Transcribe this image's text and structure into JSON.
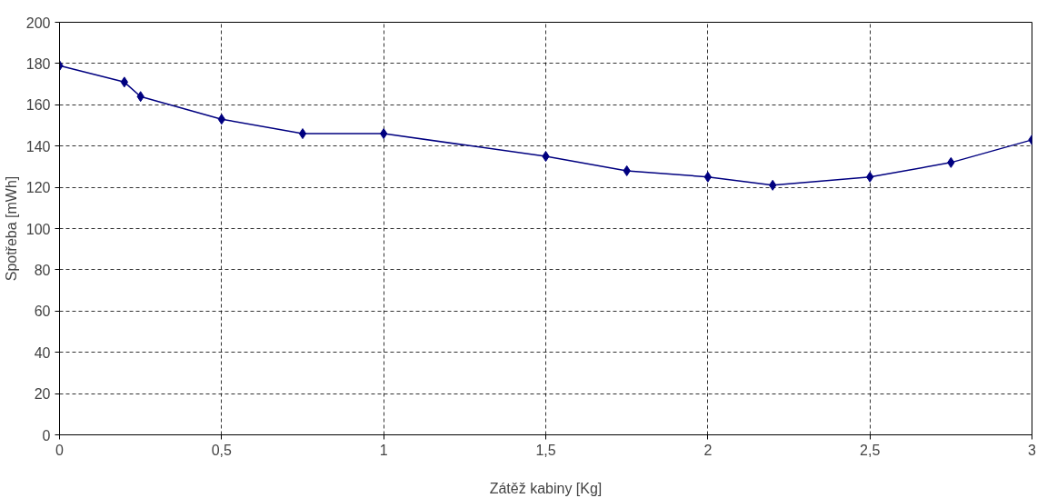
{
  "chart_data": {
    "type": "line",
    "xlabel": "Zátěž kabiny [Kg]",
    "ylabel": "Spotřeba [mWh]",
    "x": [
      0,
      0.2,
      0.25,
      0.5,
      0.75,
      1,
      1.5,
      1.75,
      2,
      2.2,
      2.5,
      2.75,
      3
    ],
    "series": [
      {
        "color": "#000080",
        "values": [
          179,
          171,
          164,
          153,
          146,
          146,
          135,
          128,
          125,
          121,
          125,
          132,
          143
        ]
      }
    ],
    "xlim": [
      0,
      3
    ],
    "ylim": [
      0,
      200
    ],
    "xticks": [
      0,
      {
        "value": 0.5,
        "label": "0,5"
      },
      1,
      {
        "value": 1.5,
        "label": "1,5"
      },
      2,
      {
        "value": 2.5,
        "label": "2,5"
      },
      3
    ],
    "yticks": [
      0,
      20,
      40,
      60,
      80,
      100,
      120,
      140,
      160,
      180,
      200
    ],
    "grid": true,
    "marker": "diamond",
    "line_style": "solid"
  }
}
